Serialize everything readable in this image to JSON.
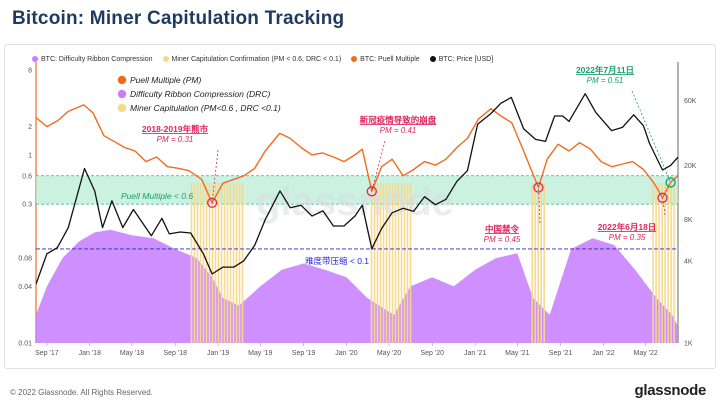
{
  "header": {
    "title": "Bitcoin: Miner Capitulation Tracking"
  },
  "legend": [
    {
      "label": "BTC: Difficulty Ribbon Compression",
      "color": "#c77dff"
    },
    {
      "label": "Miner Capitulation Confirmation (PM < 0.6, DRC < 0.1)",
      "color": "#f6d88a"
    },
    {
      "label": "BTC: Puell Multiple",
      "color": "#f26b1d"
    },
    {
      "label": "BTC: Price [USD]",
      "color": "#111111"
    }
  ],
  "footer": {
    "copyright": "© 2022 Glassnode. All Rights Reserved.",
    "logo": "glassnode"
  },
  "watermark": "glassnode",
  "chart_data": {
    "type": "line",
    "title": "Bitcoin: Miner Capitulation Tracking",
    "x_range": [
      "2017-08-01",
      "2022-08-01"
    ],
    "x_ticks": [
      "Sep '17",
      "Jan '18",
      "May '18",
      "Sep '18",
      "Jan '19",
      "May '19",
      "Sep '19",
      "Jan '20",
      "May '20",
      "Sep '20",
      "Jan '21",
      "May '21",
      "Sep '21",
      "Jan '22",
      "May '22"
    ],
    "x_tick_dates": [
      "2017-09-01",
      "2018-01-01",
      "2018-05-01",
      "2018-09-01",
      "2019-01-01",
      "2019-05-01",
      "2019-09-01",
      "2020-01-01",
      "2020-05-01",
      "2020-09-01",
      "2021-01-01",
      "2021-05-01",
      "2021-09-01",
      "2022-01-01",
      "2022-05-01"
    ],
    "y_left": {
      "scale": "log",
      "range": [
        0.01,
        8
      ],
      "ticks": [
        8,
        2,
        1,
        0.6,
        0.3,
        0.08,
        0.04,
        0.01
      ]
    },
    "y_right": {
      "scale": "log",
      "unit": "USD",
      "range": [
        1000,
        100000
      ],
      "ticks": [
        1000,
        4000,
        8000,
        20000,
        60000
      ],
      "tick_labels": [
        "1K",
        "4K",
        "8K",
        "20K",
        "60K"
      ]
    },
    "thresholds": {
      "puell_band": [
        0.3,
        0.6
      ],
      "puell_threshold": 0.6,
      "drc_threshold": 0.1
    },
    "series": [
      {
        "name": "BTC: Puell Multiple",
        "axis": "left",
        "color": "#f26b1d",
        "points": [
          [
            "2017-08-01",
            2.5
          ],
          [
            "2017-09-01",
            2.0
          ],
          [
            "2017-10-01",
            2.3
          ],
          [
            "2017-11-01",
            2.9
          ],
          [
            "2017-12-15",
            3.4
          ],
          [
            "2018-01-10",
            2.8
          ],
          [
            "2018-02-10",
            1.6
          ],
          [
            "2018-03-10",
            1.4
          ],
          [
            "2018-04-10",
            1.2
          ],
          [
            "2018-05-10",
            1.1
          ],
          [
            "2018-06-10",
            0.85
          ],
          [
            "2018-07-10",
            0.95
          ],
          [
            "2018-08-10",
            0.75
          ],
          [
            "2018-09-10",
            0.72
          ],
          [
            "2018-10-10",
            0.68
          ],
          [
            "2018-11-15",
            0.55
          ],
          [
            "2018-12-15",
            0.31
          ],
          [
            "2019-01-15",
            0.5
          ],
          [
            "2019-02-15",
            0.55
          ],
          [
            "2019-03-15",
            0.6
          ],
          [
            "2019-04-15",
            0.72
          ],
          [
            "2019-05-15",
            1.1
          ],
          [
            "2019-06-25",
            1.7
          ],
          [
            "2019-07-25",
            1.5
          ],
          [
            "2019-08-25",
            1.2
          ],
          [
            "2019-09-25",
            1.0
          ],
          [
            "2019-10-25",
            1.05
          ],
          [
            "2019-11-25",
            0.95
          ],
          [
            "2019-12-25",
            0.85
          ],
          [
            "2020-01-25",
            1.0
          ],
          [
            "2020-02-15",
            1.15
          ],
          [
            "2020-03-13",
            0.41
          ],
          [
            "2020-04-10",
            0.75
          ],
          [
            "2020-05-10",
            0.9
          ],
          [
            "2020-06-10",
            0.6
          ],
          [
            "2020-07-10",
            0.7
          ],
          [
            "2020-08-10",
            0.85
          ],
          [
            "2020-09-10",
            0.78
          ],
          [
            "2020-10-10",
            0.9
          ],
          [
            "2020-11-10",
            1.2
          ],
          [
            "2020-12-10",
            1.5
          ],
          [
            "2021-01-10",
            2.4
          ],
          [
            "2021-02-15",
            3.1
          ],
          [
            "2021-03-15",
            2.6
          ],
          [
            "2021-04-15",
            2.2
          ],
          [
            "2021-05-15",
            1.2
          ],
          [
            "2021-06-15",
            0.62
          ],
          [
            "2021-06-30",
            0.45
          ],
          [
            "2021-07-25",
            0.9
          ],
          [
            "2021-08-25",
            1.3
          ],
          [
            "2021-09-25",
            1.1
          ],
          [
            "2021-10-25",
            1.35
          ],
          [
            "2021-11-25",
            1.15
          ],
          [
            "2021-12-25",
            0.85
          ],
          [
            "2022-01-25",
            0.75
          ],
          [
            "2022-02-25",
            0.8
          ],
          [
            "2022-03-25",
            0.85
          ],
          [
            "2022-04-25",
            0.7
          ],
          [
            "2022-05-25",
            0.5
          ],
          [
            "2022-06-18",
            0.35
          ],
          [
            "2022-07-11",
            0.51
          ],
          [
            "2022-08-01",
            0.6
          ]
        ]
      },
      {
        "name": "BTC: Price [USD]",
        "axis": "right",
        "color": "#111111",
        "points": [
          [
            "2017-08-01",
            2700
          ],
          [
            "2017-09-01",
            4500
          ],
          [
            "2017-10-01",
            5000
          ],
          [
            "2017-11-01",
            7000
          ],
          [
            "2017-12-17",
            19000
          ],
          [
            "2018-01-15",
            13000
          ],
          [
            "2018-02-06",
            7000
          ],
          [
            "2018-03-05",
            11000
          ],
          [
            "2018-04-05",
            7000
          ],
          [
            "2018-05-05",
            9500
          ],
          [
            "2018-06-25",
            6100
          ],
          [
            "2018-07-25",
            8200
          ],
          [
            "2018-08-15",
            6300
          ],
          [
            "2018-09-15",
            6500
          ],
          [
            "2018-10-15",
            6400
          ],
          [
            "2018-11-20",
            4500
          ],
          [
            "2018-12-15",
            3200
          ],
          [
            "2019-01-15",
            3600
          ],
          [
            "2019-02-15",
            3600
          ],
          [
            "2019-03-15",
            4000
          ],
          [
            "2019-04-15",
            5200
          ],
          [
            "2019-05-15",
            8000
          ],
          [
            "2019-06-26",
            13000
          ],
          [
            "2019-07-25",
            9800
          ],
          [
            "2019-08-25",
            10200
          ],
          [
            "2019-09-25",
            8500
          ],
          [
            "2019-10-26",
            9300
          ],
          [
            "2019-11-25",
            7200
          ],
          [
            "2019-12-25",
            7200
          ],
          [
            "2020-01-25",
            8500
          ],
          [
            "2020-02-15",
            10200
          ],
          [
            "2020-03-13",
            4900
          ],
          [
            "2020-04-10",
            6900
          ],
          [
            "2020-05-10",
            9000
          ],
          [
            "2020-06-10",
            9700
          ],
          [
            "2020-07-10",
            9200
          ],
          [
            "2020-08-10",
            11800
          ],
          [
            "2020-09-10",
            10300
          ],
          [
            "2020-10-10",
            11300
          ],
          [
            "2020-11-10",
            15300
          ],
          [
            "2020-12-10",
            18300
          ],
          [
            "2021-01-08",
            40000
          ],
          [
            "2021-02-15",
            48000
          ],
          [
            "2021-03-15",
            57000
          ],
          [
            "2021-04-14",
            63000
          ],
          [
            "2021-05-19",
            37000
          ],
          [
            "2021-06-22",
            31000
          ],
          [
            "2021-07-20",
            30000
          ],
          [
            "2021-08-15",
            46000
          ],
          [
            "2021-09-07",
            46000
          ],
          [
            "2021-09-25",
            42000
          ],
          [
            "2021-11-10",
            67000
          ],
          [
            "2021-12-10",
            49000
          ],
          [
            "2022-01-24",
            36000
          ],
          [
            "2022-02-24",
            38000
          ],
          [
            "2022-03-28",
            47000
          ],
          [
            "2022-04-25",
            39000
          ],
          [
            "2022-05-12",
            29000
          ],
          [
            "2022-06-18",
            18500
          ],
          [
            "2022-07-11",
            20000
          ],
          [
            "2022-08-01",
            23000
          ]
        ]
      },
      {
        "name": "BTC: Difficulty Ribbon Compression",
        "axis": "left",
        "color": "#c77dff",
        "points": [
          [
            "2017-08-01",
            0.02
          ],
          [
            "2017-09-01",
            0.04
          ],
          [
            "2017-10-15",
            0.08
          ],
          [
            "2017-12-01",
            0.12
          ],
          [
            "2018-01-15",
            0.15
          ],
          [
            "2018-03-01",
            0.16
          ],
          [
            "2018-05-01",
            0.14
          ],
          [
            "2018-07-01",
            0.13
          ],
          [
            "2018-09-01",
            0.1
          ],
          [
            "2018-11-01",
            0.08
          ],
          [
            "2018-12-15",
            0.05
          ],
          [
            "2019-01-15",
            0.03
          ],
          [
            "2019-03-01",
            0.025
          ],
          [
            "2019-05-01",
            0.04
          ],
          [
            "2019-07-01",
            0.06
          ],
          [
            "2019-09-01",
            0.07
          ],
          [
            "2019-11-01",
            0.06
          ],
          [
            "2020-01-01",
            0.05
          ],
          [
            "2020-03-01",
            0.03
          ],
          [
            "2020-05-15",
            0.02
          ],
          [
            "2020-07-01",
            0.04
          ],
          [
            "2020-09-01",
            0.05
          ],
          [
            "2020-11-01",
            0.04
          ],
          [
            "2021-01-01",
            0.06
          ],
          [
            "2021-03-01",
            0.08
          ],
          [
            "2021-05-01",
            0.09
          ],
          [
            "2021-06-15",
            0.03
          ],
          [
            "2021-08-01",
            0.02
          ],
          [
            "2021-10-01",
            0.1
          ],
          [
            "2021-12-01",
            0.13
          ],
          [
            "2022-02-01",
            0.11
          ],
          [
            "2022-04-01",
            0.06
          ],
          [
            "2022-06-01",
            0.03
          ],
          [
            "2022-07-15",
            0.02
          ],
          [
            "2022-08-01",
            0.015
          ]
        ]
      }
    ],
    "capitulation_periods": [
      [
        "2018-10-15",
        "2019-03-15"
      ],
      [
        "2020-03-10",
        "2020-06-30"
      ],
      [
        "2021-06-10",
        "2021-07-20"
      ],
      [
        "2022-05-20",
        "2022-07-25"
      ]
    ],
    "annotations": [
      {
        "text": "Puell Multiple (PM)",
        "kind": "legend-note",
        "color": "#f26b1d"
      },
      {
        "text": "Difficulty Ribbon Compression (DRC)",
        "kind": "legend-note",
        "color": "#c77dff"
      },
      {
        "text": "Miner Capitulation (PM<0.6 , DRC <0.1)",
        "kind": "legend-note",
        "color": "#f6d88a"
      },
      {
        "text": "Puell Multiple < 0.6",
        "kind": "band-label",
        "color": "#1a9e6f"
      },
      {
        "text": "难度带压缩 < 0.1",
        "kind": "threshold-label",
        "color": "#2424d4"
      },
      {
        "date": "2018-12-15",
        "value": 0.31,
        "title": "2018-2019年熊市",
        "subtitle": "PM = 0.31",
        "color": "#e0245e"
      },
      {
        "date": "2020-03-13",
        "value": 0.41,
        "title": "新冠疫情导致的崩盘",
        "subtitle": "PM = 0.41",
        "color": "#e0245e"
      },
      {
        "date": "2021-06-30",
        "value": 0.45,
        "title": "中国禁令",
        "subtitle": "PM = 0.45",
        "color": "#e0245e"
      },
      {
        "date": "2022-06-18",
        "value": 0.35,
        "title": "2022年6月18日",
        "subtitle": "PM = 0.35",
        "color": "#e0245e"
      },
      {
        "date": "2022-07-11",
        "value": 0.51,
        "title": "2022年7月11日",
        "subtitle": "PM = 0.51",
        "color": "#1a9e6f"
      }
    ]
  }
}
